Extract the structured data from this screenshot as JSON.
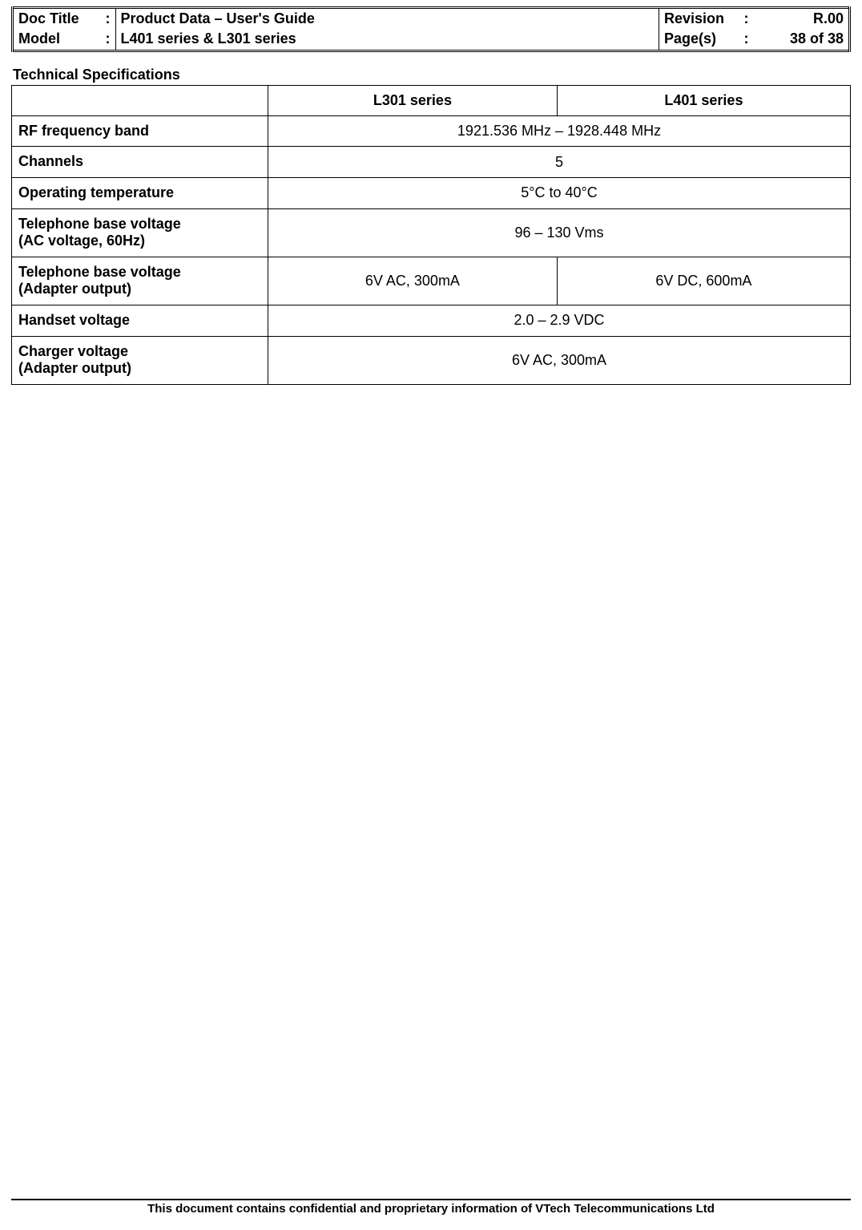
{
  "header": {
    "doc_title_label": "Doc Title",
    "doc_title_value": "Product Data – User's Guide",
    "model_label": "Model",
    "model_value": "L401 series & L301 series",
    "revision_label": "Revision",
    "revision_value": "R.00",
    "pages_label": "Page(s)",
    "pages_value": "38 of 38",
    "colon": ":"
  },
  "section_title": "Technical Specifications",
  "spec_table": {
    "col1_header": "L301 series",
    "col2_header": "L401 series",
    "rows": {
      "rf_band": {
        "label": "RF frequency band",
        "value": "1921.536 MHz – 1928.448 MHz"
      },
      "channels": {
        "label": "Channels",
        "value": "5"
      },
      "op_temp": {
        "label": "Operating temperature",
        "value": "5°C to 40°C"
      },
      "base_voltage_ac": {
        "label": "Telephone base voltage\n(AC voltage, 60Hz)",
        "value": "96 – 130 Vms"
      },
      "base_voltage_adapter": {
        "label": "Telephone base voltage\n(Adapter output)",
        "l301": "6V AC, 300mA",
        "l401": "6V DC, 600mA"
      },
      "handset_voltage": {
        "label": "Handset voltage",
        "value": "2.0 – 2.9 VDC"
      },
      "charger_voltage": {
        "label": "Charger voltage\n(Adapter output)",
        "value": "6V AC, 300mA"
      }
    }
  },
  "footer": "This document contains confidential and proprietary information of VTech Telecommunications Ltd"
}
